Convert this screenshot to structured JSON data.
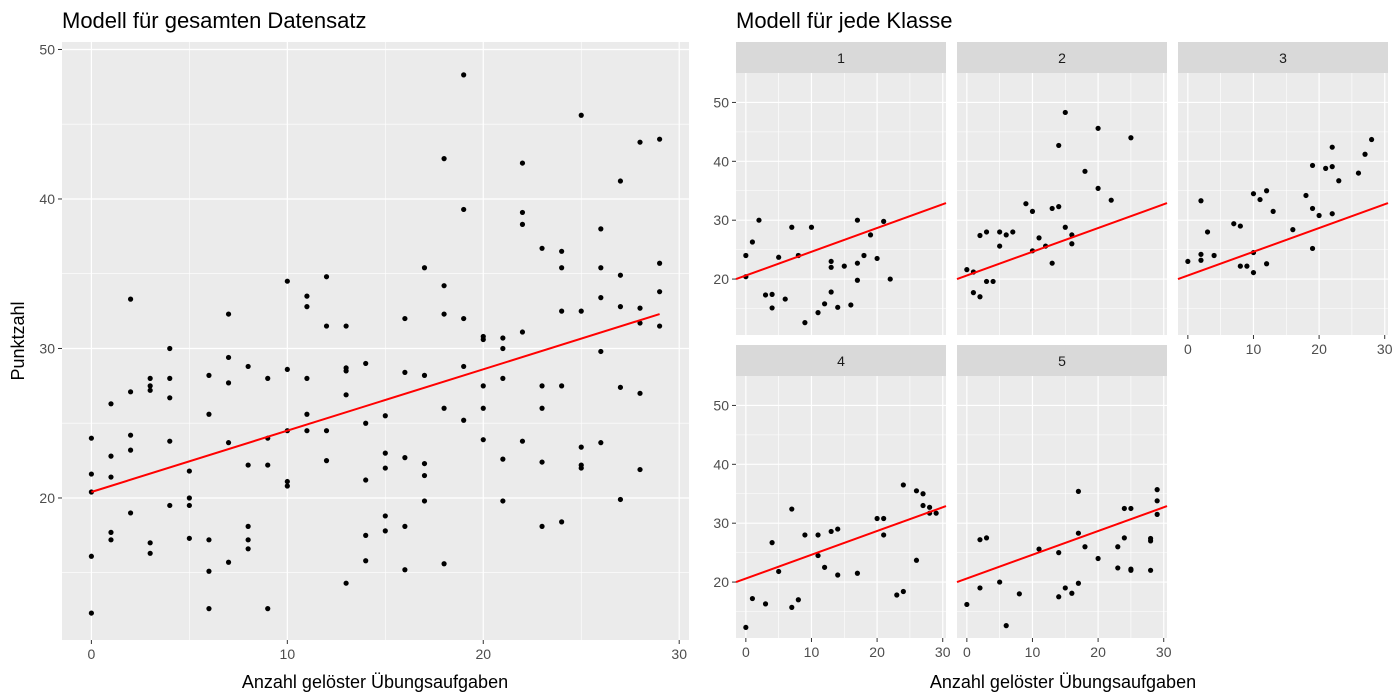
{
  "chart_data": [
    {
      "type": "scatter",
      "title": "Modell für gesamten Datensatz",
      "xlabel": "Anzahl gelöster Übungsaufgaben",
      "ylabel": "Punktzahl",
      "xlim": [
        -1.5,
        30.5
      ],
      "ylim": [
        10.5,
        50.5
      ],
      "xticks": [
        0,
        10,
        20,
        30
      ],
      "yticks": [
        20,
        30,
        40,
        50
      ],
      "grid": true,
      "regression_line": {
        "x": [
          0,
          29
        ],
        "y": [
          20.4,
          32.3
        ],
        "color": "#ff0000"
      },
      "points": [
        [
          0,
          24
        ],
        [
          0,
          21.6
        ],
        [
          0,
          20.4
        ],
        [
          0,
          16.1
        ],
        [
          0,
          12.3
        ],
        [
          1,
          26.3
        ],
        [
          1,
          22.8
        ],
        [
          1,
          21.4
        ],
        [
          1,
          17.7
        ],
        [
          1,
          17.2
        ],
        [
          2,
          33.3
        ],
        [
          2,
          27.1
        ],
        [
          2,
          24.2
        ],
        [
          2,
          23.2
        ],
        [
          2,
          19
        ],
        [
          3,
          28
        ],
        [
          3,
          27.5
        ],
        [
          3,
          27.2
        ],
        [
          3,
          17
        ],
        [
          3,
          16.3
        ],
        [
          4,
          30
        ],
        [
          4,
          28
        ],
        [
          4,
          26.7
        ],
        [
          4,
          23.8
        ],
        [
          4,
          19.5
        ],
        [
          5,
          21.8
        ],
        [
          5,
          20
        ],
        [
          5,
          19.5
        ],
        [
          5,
          17.3
        ],
        [
          6,
          28.2
        ],
        [
          6,
          25.6
        ],
        [
          6,
          17.2
        ],
        [
          6,
          15.1
        ],
        [
          6,
          12.6
        ],
        [
          7,
          32.3
        ],
        [
          7,
          29.4
        ],
        [
          7,
          27.7
        ],
        [
          7,
          23.7
        ],
        [
          7,
          15.7
        ],
        [
          8,
          28.8
        ],
        [
          8,
          22.2
        ],
        [
          8,
          18.1
        ],
        [
          8,
          17.2
        ],
        [
          8,
          16.6
        ],
        [
          9,
          28
        ],
        [
          9,
          24
        ],
        [
          9,
          22.2
        ],
        [
          9,
          12.6
        ],
        [
          10,
          34.5
        ],
        [
          10,
          28.6
        ],
        [
          10,
          24.5
        ],
        [
          10,
          21.1
        ],
        [
          10,
          20.8
        ],
        [
          11,
          33.5
        ],
        [
          11,
          32.8
        ],
        [
          11,
          28
        ],
        [
          11,
          25.6
        ],
        [
          11,
          24.5
        ],
        [
          12,
          34.8
        ],
        [
          12,
          31.5
        ],
        [
          12,
          24.5
        ],
        [
          12,
          22.5
        ],
        [
          13,
          31.5
        ],
        [
          13,
          28.7
        ],
        [
          13,
          28.5
        ],
        [
          13,
          26.9
        ],
        [
          13,
          14.3
        ],
        [
          14,
          29
        ],
        [
          14,
          25
        ],
        [
          14,
          21.2
        ],
        [
          14,
          17.5
        ],
        [
          14,
          15.8
        ],
        [
          15,
          25.5
        ],
        [
          15,
          23
        ],
        [
          15,
          22
        ],
        [
          15,
          18.8
        ],
        [
          15,
          17.8
        ],
        [
          16,
          32
        ],
        [
          16,
          28.4
        ],
        [
          16,
          22.7
        ],
        [
          16,
          18.1
        ],
        [
          16,
          15.2
        ],
        [
          17,
          35.4
        ],
        [
          17,
          28.2
        ],
        [
          17,
          22.3
        ],
        [
          17,
          21.5
        ],
        [
          17,
          19.8
        ],
        [
          18,
          42.7
        ],
        [
          18,
          34.2
        ],
        [
          18,
          32.3
        ],
        [
          18,
          26
        ],
        [
          18,
          15.6
        ],
        [
          19,
          48.3
        ],
        [
          19,
          39.3
        ],
        [
          19,
          32
        ],
        [
          19,
          28.8
        ],
        [
          19,
          25.2
        ],
        [
          20,
          30.8
        ],
        [
          20,
          30.6
        ],
        [
          20,
          27.5
        ],
        [
          20,
          26
        ],
        [
          20,
          23.9
        ],
        [
          21,
          30.7
        ],
        [
          21,
          30
        ],
        [
          21,
          28
        ],
        [
          21,
          22.6
        ],
        [
          21,
          19.8
        ],
        [
          22,
          42.4
        ],
        [
          22,
          39.1
        ],
        [
          22,
          38.3
        ],
        [
          22,
          31.1
        ],
        [
          22,
          23.8
        ],
        [
          23,
          36.7
        ],
        [
          23,
          27.5
        ],
        [
          23,
          26
        ],
        [
          23,
          22.4
        ],
        [
          23,
          18.1
        ],
        [
          24,
          36.5
        ],
        [
          24,
          35.4
        ],
        [
          24,
          32.5
        ],
        [
          24,
          27.5
        ],
        [
          24,
          18.4
        ],
        [
          25,
          45.6
        ],
        [
          25,
          32.5
        ],
        [
          25,
          23.4
        ],
        [
          25,
          22.2
        ],
        [
          25,
          22
        ],
        [
          26,
          38
        ],
        [
          26,
          35.4
        ],
        [
          26,
          33.4
        ],
        [
          26,
          29.8
        ],
        [
          26,
          23.7
        ],
        [
          27,
          41.2
        ],
        [
          27,
          34.9
        ],
        [
          27,
          32.8
        ],
        [
          27,
          27.4
        ],
        [
          27,
          19.9
        ],
        [
          28,
          43.8
        ],
        [
          28,
          32.7
        ],
        [
          28,
          31.7
        ],
        [
          28,
          27
        ],
        [
          28,
          21.9
        ],
        [
          29,
          44
        ],
        [
          29,
          35.7
        ],
        [
          29,
          33.8
        ],
        [
          29,
          31.5
        ]
      ]
    },
    {
      "type": "scatter",
      "title": "Modell für jede Klasse",
      "xlabel": "Anzahl gelöster Übungsaufgaben",
      "xlim": [
        -1.5,
        30.5
      ],
      "ylim": [
        10.5,
        55
      ],
      "xticks": [
        0,
        10,
        20,
        30
      ],
      "yticks": [
        20,
        30,
        40,
        50
      ],
      "grid": true,
      "facets": [
        {
          "label": "1",
          "line": {
            "x": [
              -1.5,
              30.5
            ],
            "y": [
              20,
              32.9
            ],
            "color": "#ff0000"
          },
          "points": [
            [
              0,
              24
            ],
            [
              0,
              20.4
            ],
            [
              1,
              26.3
            ],
            [
              2,
              30
            ],
            [
              3,
              17.3
            ],
            [
              4,
              17.4
            ],
            [
              4,
              15.1
            ],
            [
              5,
              23.7
            ],
            [
              6,
              16.6
            ],
            [
              7,
              28.8
            ],
            [
              8,
              24
            ],
            [
              9,
              12.6
            ],
            [
              10,
              28.8
            ],
            [
              11,
              14.3
            ],
            [
              12,
              15.8
            ],
            [
              13,
              23
            ],
            [
              13,
              22
            ],
            [
              13,
              17.8
            ],
            [
              14,
              15.2
            ],
            [
              15,
              22.2
            ],
            [
              16,
              15.6
            ],
            [
              17,
              30
            ],
            [
              17,
              19.8
            ],
            [
              17,
              22.7
            ],
            [
              18,
              24
            ],
            [
              19,
              27.5
            ],
            [
              20,
              23.5
            ],
            [
              21,
              29.8
            ],
            [
              22,
              20
            ]
          ]
        },
        {
          "label": "2",
          "line": {
            "x": [
              -1.5,
              30.5
            ],
            "y": [
              20,
              32.9
            ],
            "color": "#ff0000"
          },
          "points": [
            [
              0,
              21.6
            ],
            [
              1,
              21.2
            ],
            [
              1,
              17.7
            ],
            [
              2,
              27.4
            ],
            [
              2,
              17
            ],
            [
              3,
              28
            ],
            [
              3,
              19.6
            ],
            [
              4,
              19.6
            ],
            [
              5,
              28
            ],
            [
              5,
              25.6
            ],
            [
              6,
              27.5
            ],
            [
              7,
              28
            ],
            [
              9,
              32.8
            ],
            [
              10,
              31.5
            ],
            [
              10,
              24.8
            ],
            [
              11,
              27
            ],
            [
              12,
              25.6
            ],
            [
              13,
              32
            ],
            [
              13,
              22.7
            ],
            [
              14,
              42.7
            ],
            [
              14,
              32.3
            ],
            [
              15,
              48.3
            ],
            [
              15,
              28.8
            ],
            [
              16,
              27.5
            ],
            [
              16,
              26
            ],
            [
              18,
              38.3
            ],
            [
              20,
              35.4
            ],
            [
              20,
              45.6
            ],
            [
              22,
              33.4
            ],
            [
              25,
              44
            ]
          ]
        },
        {
          "label": "3",
          "line": {
            "x": [
              -1.5,
              30.5
            ],
            "y": [
              20,
              32.9
            ],
            "color": "#ff0000"
          },
          "points": [
            [
              0,
              23
            ],
            [
              2,
              33.3
            ],
            [
              2,
              24.2
            ],
            [
              2,
              23.2
            ],
            [
              3,
              28
            ],
            [
              4,
              24
            ],
            [
              7,
              29.4
            ],
            [
              8,
              29
            ],
            [
              8,
              22.2
            ],
            [
              9,
              22.2
            ],
            [
              10,
              34.5
            ],
            [
              10,
              24.5
            ],
            [
              10,
              21.1
            ],
            [
              11,
              33.5
            ],
            [
              12,
              35
            ],
            [
              12,
              22.6
            ],
            [
              13,
              31.5
            ],
            [
              16,
              28.4
            ],
            [
              18,
              34.2
            ],
            [
              19,
              39.3
            ],
            [
              19,
              32
            ],
            [
              19,
              25.2
            ],
            [
              20,
              30.8
            ],
            [
              21,
              38.8
            ],
            [
              22,
              42.4
            ],
            [
              22,
              39.1
            ],
            [
              22,
              31.1
            ],
            [
              23,
              36.7
            ],
            [
              26,
              38
            ],
            [
              27,
              41.2
            ],
            [
              28,
              43.7
            ]
          ]
        },
        {
          "label": "4",
          "line": {
            "x": [
              -1.5,
              30.5
            ],
            "y": [
              20,
              32.9
            ],
            "color": "#ff0000"
          },
          "points": [
            [
              0,
              12.3
            ],
            [
              1,
              17.2
            ],
            [
              3,
              16.3
            ],
            [
              4,
              26.7
            ],
            [
              5,
              21.8
            ],
            [
              7,
              32.4
            ],
            [
              7,
              15.7
            ],
            [
              8,
              17
            ],
            [
              9,
              28
            ],
            [
              11,
              28
            ],
            [
              11,
              24.5
            ],
            [
              12,
              22.5
            ],
            [
              13,
              28.6
            ],
            [
              14,
              29
            ],
            [
              14,
              21.2
            ],
            [
              17,
              21.5
            ],
            [
              20,
              30.8
            ],
            [
              21,
              30.8
            ],
            [
              21,
              28
            ],
            [
              23,
              17.8
            ],
            [
              24,
              36.5
            ],
            [
              24,
              18.4
            ],
            [
              26,
              35.5
            ],
            [
              26,
              23.7
            ],
            [
              27,
              35
            ],
            [
              27,
              33
            ],
            [
              28,
              32.7
            ],
            [
              28,
              31.7
            ],
            [
              29,
              31.7
            ]
          ]
        },
        {
          "label": "5",
          "line": {
            "x": [
              -1.5,
              30.5
            ],
            "y": [
              20,
              32.9
            ],
            "color": "#ff0000"
          },
          "points": [
            [
              0,
              16.2
            ],
            [
              2,
              27.2
            ],
            [
              2,
              19
            ],
            [
              3,
              27.5
            ],
            [
              5,
              20
            ],
            [
              6,
              12.6
            ],
            [
              8,
              18
            ],
            [
              11,
              25.6
            ],
            [
              14,
              25
            ],
            [
              14,
              17.5
            ],
            [
              15,
              19
            ],
            [
              16,
              18.1
            ],
            [
              17,
              35.4
            ],
            [
              17,
              28.3
            ],
            [
              17,
              19.8
            ],
            [
              18,
              26
            ],
            [
              20,
              24
            ],
            [
              23,
              26
            ],
            [
              23,
              22.4
            ],
            [
              24,
              32.5
            ],
            [
              24,
              27.5
            ],
            [
              25,
              32.5
            ],
            [
              25,
              22.2
            ],
            [
              25,
              22
            ],
            [
              28,
              27.4
            ],
            [
              28,
              27
            ],
            [
              28,
              22
            ],
            [
              29,
              35.7
            ],
            [
              29,
              33.8
            ],
            [
              29,
              31.5
            ]
          ]
        }
      ]
    }
  ]
}
